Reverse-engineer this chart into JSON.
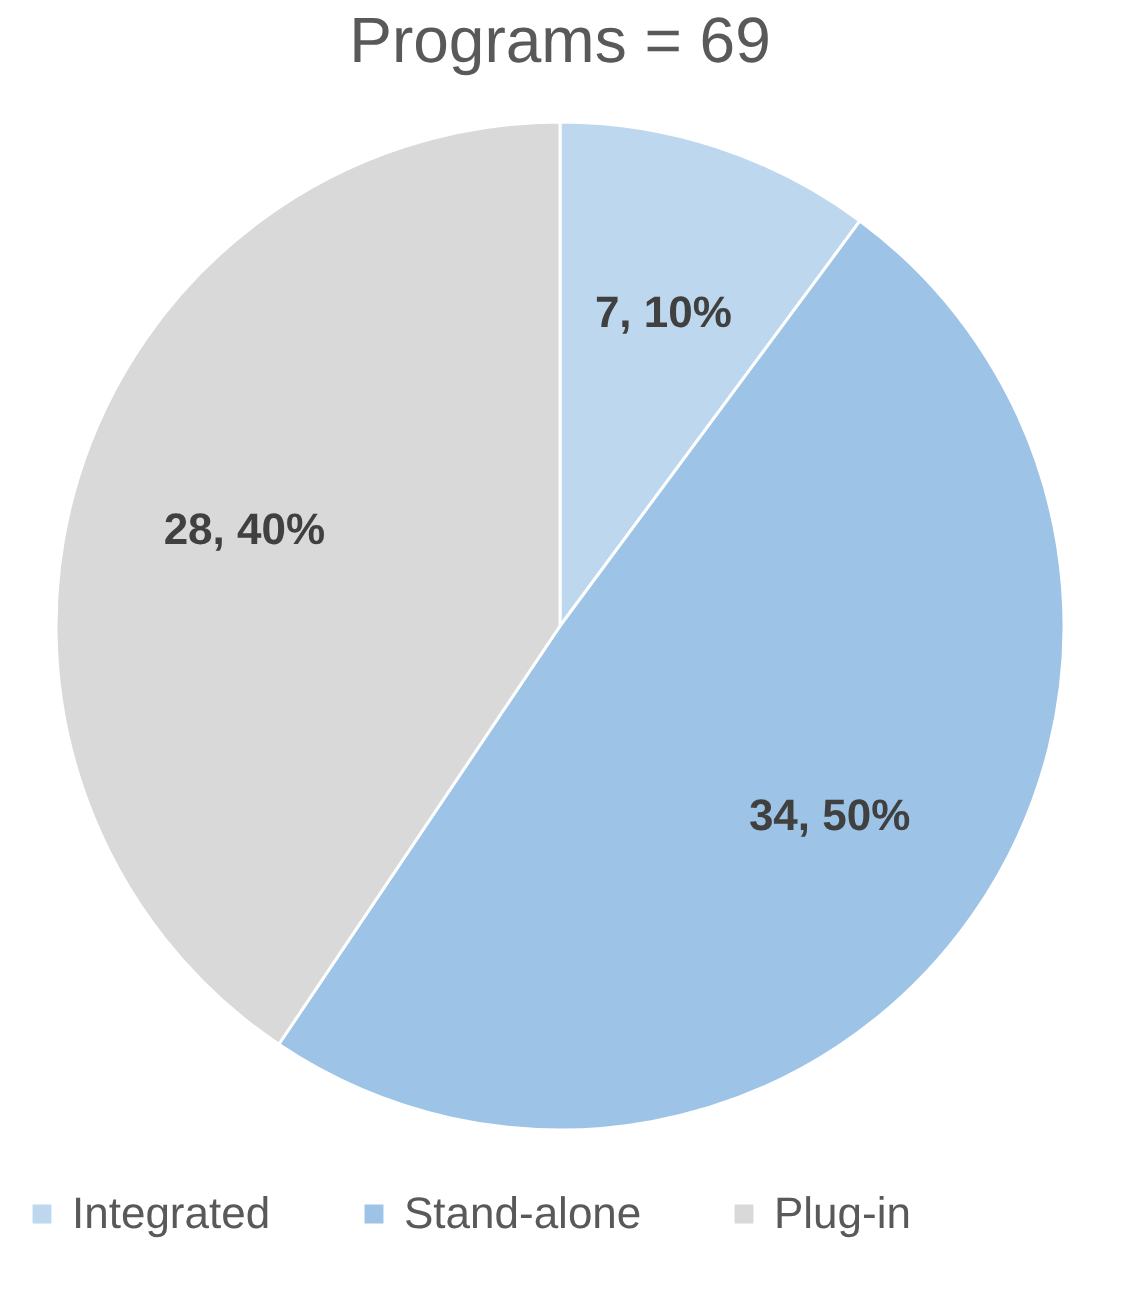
{
  "chart_data": {
    "type": "pie",
    "title": "Programs = 69",
    "categories": [
      "Integrated",
      "Stand-alone",
      "Plug-in"
    ],
    "values": [
      7,
      34,
      28
    ],
    "colors": [
      "#bdd7ee",
      "#9dc3e6",
      "#d9d9d9"
    ],
    "value_labels": [
      "7, 10%",
      "34, 50%",
      "28, 40%"
    ],
    "legend": "bottom"
  }
}
